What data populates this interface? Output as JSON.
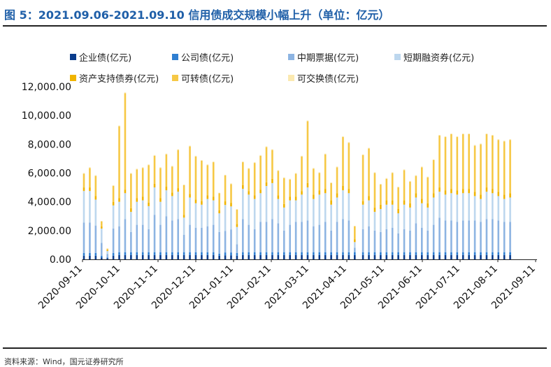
{
  "figure": {
    "title": "图 5：2021.09.06-2021.09.10 信用债成交规模小幅上升（单位：亿元）",
    "source": "资料来源：Wind，国元证券研究所"
  },
  "chart_data": {
    "type": "bar",
    "stacked": true,
    "title": "图 5：2021.09.06-2021.09.10 信用债成交规模小幅上升（单位：亿元）",
    "xlabel": "",
    "ylabel": "",
    "ylim": [
      0,
      12000
    ],
    "yticks": [
      "0.00",
      "2,000.00",
      "4,000.00",
      "6,000.00",
      "8,000.00",
      "10,000.00",
      "12,000.00"
    ],
    "ytick_values": [
      0,
      2000,
      4000,
      6000,
      8000,
      10000,
      12000
    ],
    "x_tick_labels": [
      "2020-09-11",
      "2020-10-11",
      "2020-11-11",
      "2020-12-11",
      "2021-01-11",
      "2021-02-11",
      "2021-03-11",
      "2021-04-11",
      "2021-05-11",
      "2021-06-11",
      "2021-07-11",
      "2021-08-11",
      "2021-09-11"
    ],
    "legend_position": "top",
    "series": [
      {
        "name": "企业债(亿元)",
        "color": "#0a3c8c",
        "values": [
          250,
          250,
          250,
          120,
          80,
          250,
          300,
          300,
          300,
          300,
          300,
          300,
          300,
          300,
          300,
          300,
          300,
          300,
          300,
          300,
          300,
          300,
          300,
          250,
          280,
          280,
          250,
          300,
          300,
          300,
          300,
          300,
          300,
          300,
          300,
          300,
          300,
          300,
          300,
          300,
          300,
          300,
          300,
          300,
          300,
          300,
          300,
          300,
          300,
          300,
          300,
          300,
          300,
          300,
          300,
          300,
          300,
          300,
          300,
          300,
          300,
          300,
          300,
          300,
          300,
          300,
          300,
          300,
          300,
          300,
          300,
          300,
          300
        ]
      },
      {
        "name": "公司债(亿元)",
        "color": "#2f7fd1",
        "values": [
          200,
          200,
          200,
          120,
          50,
          200,
          200,
          200,
          200,
          200,
          200,
          200,
          200,
          200,
          200,
          200,
          200,
          200,
          200,
          200,
          200,
          200,
          200,
          150,
          200,
          200,
          200,
          200,
          200,
          200,
          200,
          200,
          200,
          200,
          200,
          200,
          200,
          200,
          200,
          200,
          200,
          200,
          200,
          200,
          200,
          200,
          200,
          200,
          200,
          200,
          200,
          200,
          200,
          200,
          200,
          200,
          200,
          200,
          200,
          200,
          200,
          200,
          200,
          200,
          200,
          200,
          200,
          200,
          200,
          200,
          200,
          200,
          200
        ]
      },
      {
        "name": "中期票据(亿元)",
        "color": "#8db4e2",
        "values": [
          2100,
          2100,
          1900,
          900,
          250,
          1700,
          1800,
          2300,
          1400,
          1900,
          1900,
          1600,
          2600,
          1900,
          2500,
          2200,
          2300,
          1200,
          1900,
          1700,
          1700,
          1800,
          1900,
          1500,
          1500,
          1600,
          600,
          2300,
          1900,
          1600,
          2100,
          2100,
          2300,
          2000,
          1500,
          1900,
          2100,
          2100,
          2200,
          1800,
          1900,
          2100,
          1500,
          2100,
          2300,
          2200,
          300,
          1600,
          1800,
          1500,
          1400,
          1600,
          1700,
          1300,
          1600,
          1500,
          2000,
          1700,
          1500,
          1900,
          2400,
          2200,
          2200,
          2100,
          2200,
          2200,
          2200,
          2100,
          2300,
          2300,
          2200,
          2100,
          2100
        ]
      },
      {
        "name": "短期融资券(亿元)",
        "color": "#bdd7ee",
        "values": [
          2200,
          2200,
          1800,
          1000,
          200,
          1600,
          1700,
          1800,
          1400,
          1600,
          1700,
          1600,
          1900,
          1600,
          1800,
          1700,
          1900,
          1200,
          1900,
          1700,
          1600,
          1900,
          1700,
          1300,
          1800,
          1600,
          1200,
          2100,
          2100,
          2100,
          2000,
          2500,
          2500,
          1700,
          1600,
          1700,
          1500,
          1900,
          2300,
          1900,
          2100,
          2000,
          1800,
          1700,
          2000,
          1900,
          400,
          1700,
          1800,
          1300,
          1600,
          1700,
          1600,
          1400,
          1700,
          1600,
          1800,
          1700,
          1600,
          1900,
          1800,
          1800,
          1900,
          1900,
          1900,
          1900,
          1700,
          1600,
          1900,
          1800,
          1700,
          1600,
          1700
        ]
      },
      {
        "name": "资产支持债券(亿元)",
        "color": "#f0b400",
        "values": [
          250,
          250,
          250,
          150,
          60,
          250,
          250,
          250,
          250,
          250,
          250,
          250,
          250,
          250,
          250,
          250,
          250,
          200,
          250,
          250,
          250,
          250,
          250,
          200,
          250,
          250,
          200,
          250,
          250,
          250,
          250,
          250,
          300,
          250,
          250,
          250,
          250,
          250,
          300,
          300,
          300,
          300,
          300,
          300,
          300,
          300,
          200,
          250,
          300,
          300,
          300,
          300,
          300,
          300,
          300,
          300,
          300,
          300,
          300,
          300,
          300,
          300,
          300,
          300,
          300,
          300,
          300,
          300,
          300,
          300,
          300,
          300,
          300
        ]
      },
      {
        "name": "可转债(亿元)",
        "color": "#f6c845",
        "values": [
          950,
          1350,
          1400,
          350,
          100,
          1100,
          5000,
          6700,
          2400,
          2000,
          2000,
          2600,
          1950,
          2100,
          2250,
          1800,
          2650,
          2050,
          3300,
          3000,
          2800,
          2100,
          2400,
          1200,
          1800,
          1300,
          1000,
          1600,
          1550,
          2250,
          2350,
          2450,
          2000,
          1700,
          1800,
          1200,
          1600,
          2400,
          4300,
          1800,
          1200,
          2400,
          1200,
          1800,
          3400,
          3200,
          900,
          3200,
          3300,
          2400,
          1400,
          1500,
          1900,
          1500,
          2100,
          1500,
          1200,
          2200,
          1800,
          2300,
          3600,
          3700,
          3800,
          3700,
          3800,
          3800,
          3200,
          3500,
          3700,
          3700,
          3600,
          3700,
          3700
        ]
      },
      {
        "name": "可交换债(亿元)",
        "color": "#fbe9b0",
        "values": [
          50,
          50,
          50,
          30,
          20,
          50,
          50,
          50,
          50,
          50,
          50,
          50,
          50,
          50,
          50,
          50,
          50,
          50,
          50,
          50,
          50,
          50,
          50,
          30,
          50,
          50,
          50,
          50,
          50,
          50,
          50,
          50,
          50,
          50,
          50,
          50,
          50,
          50,
          50,
          50,
          50,
          50,
          50,
          50,
          50,
          50,
          30,
          50,
          50,
          50,
          50,
          50,
          50,
          50,
          50,
          50,
          50,
          50,
          50,
          50,
          50,
          50,
          50,
          50,
          50,
          50,
          50,
          50,
          50,
          50,
          50,
          50,
          50
        ]
      }
    ]
  },
  "icons": {
    "legend_marker": "square-swatch"
  }
}
